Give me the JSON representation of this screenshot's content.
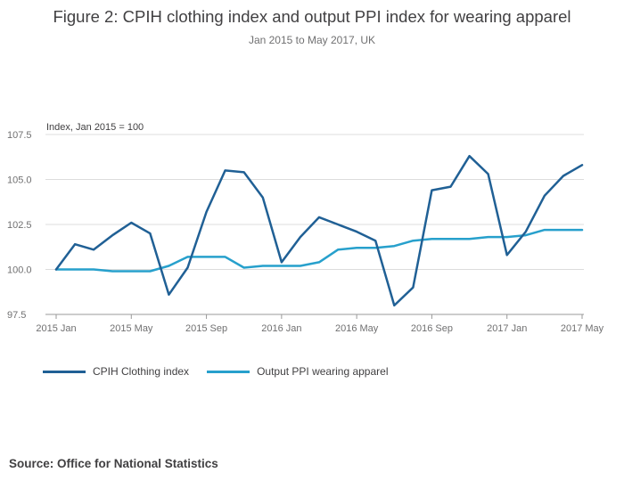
{
  "title": "Figure 2: CPIH clothing index and output PPI index for wearing apparel",
  "subtitle": "Jan 2015 to May 2017, UK",
  "source": "Source: Office for National Statistics",
  "colors": {
    "cpih": "#206095",
    "ppi": "#27a0cc",
    "grid": "#dcdcdc",
    "axis": "#999999"
  },
  "chart_data": {
    "type": "line",
    "ylabel": "Index, Jan 2015 = 100",
    "ylim": [
      97.5,
      107.5
    ],
    "yticks": [
      "97.5",
      "100.0",
      "102.5",
      "105.0",
      "107.5"
    ],
    "ytick_values": [
      97.5,
      100.0,
      102.5,
      105.0,
      107.5
    ],
    "x": [
      "2015 Jan",
      "2015 Feb",
      "2015 Mar",
      "2015 Apr",
      "2015 May",
      "2015 Jun",
      "2015 Jul",
      "2015 Aug",
      "2015 Sep",
      "2015 Oct",
      "2015 Nov",
      "2015 Dec",
      "2016 Jan",
      "2016 Feb",
      "2016 Mar",
      "2016 Apr",
      "2016 May",
      "2016 Jun",
      "2016 Jul",
      "2016 Aug",
      "2016 Sep",
      "2016 Oct",
      "2016 Nov",
      "2016 Dec",
      "2017 Jan",
      "2017 Feb",
      "2017 Mar",
      "2017 Apr",
      "2017 May"
    ],
    "xticks": [
      {
        "label": "2015 Jan",
        "index": 0
      },
      {
        "label": "2015 May",
        "index": 4
      },
      {
        "label": "2015 Sep",
        "index": 8
      },
      {
        "label": "2016 Jan",
        "index": 12
      },
      {
        "label": "2016 May",
        "index": 16
      },
      {
        "label": "2016 Sep",
        "index": 20
      },
      {
        "label": "2017 Jan",
        "index": 24
      },
      {
        "label": "2017 May",
        "index": 28
      }
    ],
    "grid": true,
    "legend_position": "bottom-left",
    "series": [
      {
        "name": "CPIH Clothing index",
        "color_key": "cpih",
        "values": [
          100.0,
          101.4,
          101.1,
          101.9,
          102.6,
          102.0,
          98.6,
          100.1,
          103.2,
          105.5,
          105.4,
          104.0,
          100.4,
          101.8,
          102.9,
          102.5,
          102.1,
          101.6,
          98.0,
          99.0,
          104.4,
          104.6,
          106.3,
          105.3,
          100.8,
          102.1,
          104.1,
          105.2,
          105.8
        ]
      },
      {
        "name": "Output PPI wearing apparel",
        "color_key": "ppi",
        "values": [
          100.0,
          100.0,
          100.0,
          99.9,
          99.9,
          99.9,
          100.2,
          100.7,
          100.7,
          100.7,
          100.1,
          100.2,
          100.2,
          100.2,
          100.4,
          101.1,
          101.2,
          101.2,
          101.3,
          101.6,
          101.7,
          101.7,
          101.7,
          101.8,
          101.8,
          101.9,
          102.2,
          102.2,
          102.2
        ]
      }
    ]
  }
}
